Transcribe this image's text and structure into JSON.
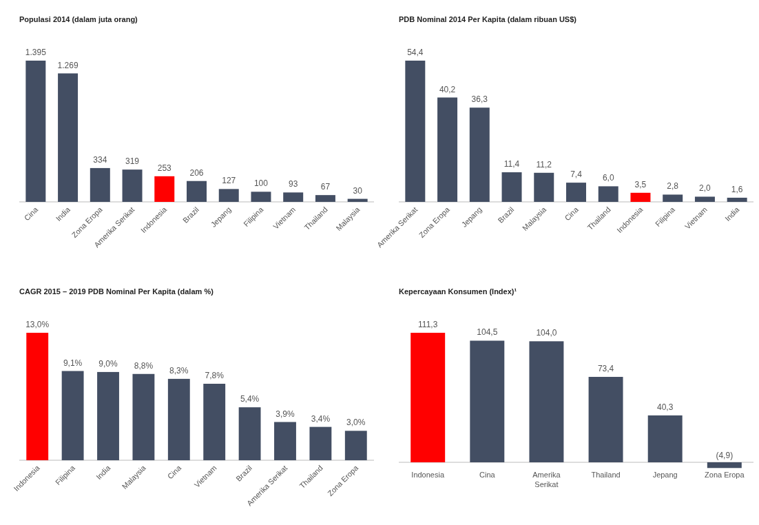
{
  "chart_data": [
    {
      "type": "bar",
      "title": "Populasi 2014 (dalam juta orang)",
      "categories": [
        "Cina",
        "India",
        "Zona Eropa",
        "Amerika Serikat",
        "Indonesia",
        "Brazil",
        "Jepang",
        "Filipina",
        "Vietnam",
        "Thailand",
        "Malaysia"
      ],
      "values": [
        1395,
        1269,
        334,
        319,
        253,
        206,
        127,
        100,
        93,
        67,
        30
      ],
      "value_labels": [
        "1.395",
        "1.269",
        "334",
        "319",
        "253",
        "206",
        "127",
        "100",
        "93",
        "67",
        "30"
      ],
      "colors": [
        "#434e63",
        "#434e63",
        "#434e63",
        "#434e63",
        "#ff0000",
        "#434e63",
        "#434e63",
        "#434e63",
        "#434e63",
        "#434e63",
        "#434e63"
      ]
    },
    {
      "type": "bar",
      "title": "PDB Nominal 2014 Per Kapita (dalam ribuan US$)",
      "categories": [
        "Amerika Serikat",
        "Zona Eropa",
        "Jepang",
        "Brazil",
        "Malaysia",
        "Cina",
        "Thailand",
        "Indonesia",
        "Filipina",
        "Vietnam",
        "India"
      ],
      "values": [
        54.4,
        40.2,
        36.3,
        11.4,
        11.2,
        7.4,
        6.0,
        3.5,
        2.8,
        2.0,
        1.6
      ],
      "value_labels": [
        "54,4",
        "40,2",
        "36,3",
        "11,4",
        "11,2",
        "7,4",
        "6,0",
        "3,5",
        "2,8",
        "2,0",
        "1,6"
      ],
      "colors": [
        "#434e63",
        "#434e63",
        "#434e63",
        "#434e63",
        "#434e63",
        "#434e63",
        "#434e63",
        "#ff0000",
        "#434e63",
        "#434e63",
        "#434e63"
      ]
    },
    {
      "type": "bar",
      "title": "CAGR 2015 – 2019 PDB Nominal Per Kapita (dalam %)",
      "categories": [
        "Indonesia",
        "Filipina",
        "India",
        "Malaysia",
        "Cina",
        "Vietnam",
        "Brazil",
        "Amerika Serikat",
        "Thailand",
        "Zona Eropa"
      ],
      "values": [
        13.0,
        9.1,
        9.0,
        8.8,
        8.3,
        7.8,
        5.4,
        3.9,
        3.4,
        3.0
      ],
      "value_labels": [
        "13,0%",
        "9,1%",
        "9,0%",
        "8,8%",
        "8,3%",
        "7,8%",
        "5,4%",
        "3,9%",
        "3,4%",
        "3,0%"
      ],
      "colors": [
        "#ff0000",
        "#434e63",
        "#434e63",
        "#434e63",
        "#434e63",
        "#434e63",
        "#434e63",
        "#434e63",
        "#434e63",
        "#434e63"
      ]
    },
    {
      "type": "bar",
      "title": "Kepercayaan Konsumen (Index)¹",
      "categories": [
        "Indonesia",
        "Cina",
        "Amerika Serikat",
        "Thailand",
        "Jepang",
        "Zona Eropa"
      ],
      "values": [
        111.3,
        104.5,
        104.0,
        73.4,
        40.3,
        -4.9
      ],
      "value_labels": [
        "111,3",
        "104,5",
        "104,0",
        "73,4",
        "40,3",
        "(4,9)"
      ],
      "colors": [
        "#ff0000",
        "#434e63",
        "#434e63",
        "#434e63",
        "#434e63",
        "#434e63"
      ]
    }
  ]
}
